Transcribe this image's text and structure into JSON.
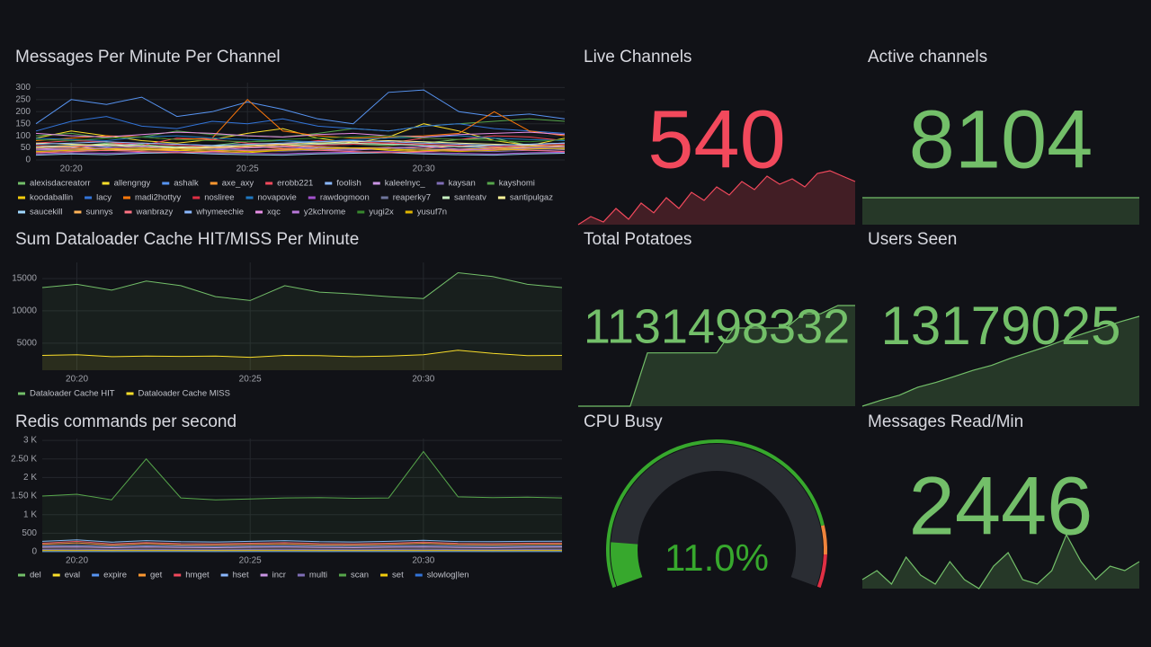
{
  "chart_data": [
    {
      "type": "line",
      "title": "Messages Per Minute Per Channel",
      "categories": [
        null,
        "20:20",
        null,
        null,
        null,
        null,
        "20:25",
        null,
        null,
        null,
        null,
        "20:30",
        null,
        null,
        null,
        null
      ],
      "ylim": [
        0,
        320
      ],
      "yticks": [
        0,
        50,
        100,
        150,
        200,
        250,
        300
      ],
      "grid": true,
      "series": [
        {
          "name": "alexisdacreatorr",
          "color": "#73bf69",
          "values": [
            60,
            55,
            70,
            65,
            50,
            60,
            75,
            80,
            70,
            65,
            60,
            70,
            85,
            90,
            60,
            70
          ]
        },
        {
          "name": "allengngy",
          "color": "#fade2a",
          "values": [
            90,
            120,
            100,
            80,
            70,
            85,
            110,
            130,
            90,
            70,
            95,
            150,
            120,
            80,
            60,
            90
          ]
        },
        {
          "name": "ashalk",
          "color": "#5794f2",
          "values": [
            150,
            250,
            230,
            260,
            180,
            200,
            240,
            210,
            170,
            150,
            280,
            290,
            200,
            180,
            190,
            170
          ]
        },
        {
          "name": "axe_axy",
          "color": "#ff9830",
          "values": [
            40,
            45,
            50,
            42,
            38,
            50,
            55,
            48,
            45,
            50,
            52,
            47,
            60,
            55,
            50,
            48
          ]
        },
        {
          "name": "erobb221",
          "color": "#f2495c",
          "values": [
            70,
            80,
            75,
            60,
            90,
            85,
            70,
            65,
            80,
            75,
            70,
            90,
            85,
            100,
            95,
            80
          ]
        },
        {
          "name": "foolish",
          "color": "#8ab8ff",
          "values": [
            50,
            60,
            55,
            70,
            65,
            60,
            50,
            55,
            60,
            65,
            70,
            60,
            55,
            50,
            60,
            65
          ]
        },
        {
          "name": "kaleelnyc_",
          "color": "#ca95e5",
          "values": [
            45,
            50,
            60,
            55,
            50,
            45,
            55,
            60,
            50,
            45,
            50,
            55,
            60,
            55,
            50,
            45
          ]
        },
        {
          "name": "kaysan",
          "color": "#806eb7",
          "values": [
            35,
            40,
            38,
            42,
            45,
            40,
            38,
            36,
            40,
            42,
            45,
            40,
            38,
            35,
            40,
            42
          ]
        },
        {
          "name": "kayshomi",
          "color": "#56a64b",
          "values": [
            100,
            110,
            90,
            95,
            120,
            105,
            100,
            95,
            110,
            130,
            120,
            140,
            150,
            160,
            170,
            160
          ]
        },
        {
          "name": "koodaballin",
          "color": "#f2cc0c",
          "values": [
            30,
            35,
            40,
            45,
            40,
            35,
            30,
            40,
            45,
            50,
            40,
            35,
            40,
            45,
            50,
            45
          ]
        },
        {
          "name": "lacy",
          "color": "#3274d9",
          "values": [
            120,
            160,
            180,
            140,
            130,
            160,
            150,
            170,
            140,
            130,
            120,
            140,
            150,
            130,
            120,
            110
          ]
        },
        {
          "name": "madi2hottyy",
          "color": "#ff780a",
          "values": [
            80,
            90,
            100,
            95,
            85,
            90,
            250,
            120,
            100,
            90,
            95,
            100,
            110,
            200,
            120,
            100
          ]
        },
        {
          "name": "nosliree",
          "color": "#e02f44",
          "values": [
            60,
            55,
            65,
            70,
            60,
            55,
            50,
            55,
            60,
            65,
            70,
            65,
            60,
            55,
            60,
            65
          ]
        },
        {
          "name": "novapovie",
          "color": "#1f78c1",
          "values": [
            90,
            85,
            80,
            95,
            100,
            90,
            85,
            80,
            75,
            85,
            90,
            95,
            100,
            90,
            85,
            80
          ]
        },
        {
          "name": "rawdogmoon",
          "color": "#a352cc",
          "values": [
            25,
            30,
            28,
            32,
            35,
            30,
            28,
            26,
            30,
            32,
            35,
            30,
            28,
            25,
            30,
            32
          ]
        },
        {
          "name": "reaperky7",
          "color": "#6e759c",
          "values": [
            40,
            42,
            45,
            48,
            50,
            45,
            42,
            40,
            45,
            48,
            50,
            45,
            42,
            40,
            45,
            48
          ]
        },
        {
          "name": "santeatv",
          "color": "#c8f2c2",
          "values": [
            55,
            60,
            65,
            60,
            55,
            50,
            55,
            60,
            65,
            70,
            65,
            60,
            55,
            60,
            65,
            70
          ]
        },
        {
          "name": "santipulgaz",
          "color": "#fff899",
          "values": [
            70,
            65,
            60,
            55,
            50,
            55,
            60,
            65,
            70,
            75,
            80,
            75,
            70,
            65,
            60,
            55
          ]
        },
        {
          "name": "saucekill",
          "color": "#a0d8ff",
          "values": [
            20,
            25,
            22,
            28,
            30,
            25,
            22,
            20,
            25,
            28,
            30,
            25,
            22,
            20,
            25,
            28
          ]
        },
        {
          "name": "sunnys",
          "color": "#ffb357",
          "values": [
            50,
            55,
            45,
            40,
            45,
            50,
            55,
            60,
            55,
            50,
            45,
            40,
            45,
            50,
            55,
            60
          ]
        },
        {
          "name": "wanbrazy",
          "color": "#ff7383",
          "values": [
            30,
            35,
            40,
            35,
            30,
            35,
            40,
            45,
            40,
            35,
            30,
            35,
            40,
            45,
            40,
            35
          ]
        },
        {
          "name": "whymeechie",
          "color": "#8ab8ff",
          "values": [
            65,
            70,
            75,
            70,
            65,
            60,
            65,
            70,
            75,
            80,
            75,
            70,
            65,
            60,
            65,
            70
          ]
        },
        {
          "name": "xqc",
          "color": "#e88fe6",
          "values": [
            110,
            100,
            95,
            105,
            115,
            110,
            100,
            95,
            105,
            110,
            100,
            95,
            105,
            110,
            115,
            105
          ]
        },
        {
          "name": "y2kchrome",
          "color": "#b877d9",
          "values": [
            45,
            40,
            50,
            55,
            45,
            40,
            50,
            55,
            45,
            40,
            50,
            55,
            45,
            40,
            50,
            55
          ]
        },
        {
          "name": "yugi2x",
          "color": "#37872d",
          "values": [
            85,
            80,
            90,
            95,
            85,
            80,
            75,
            85,
            90,
            95,
            100,
            90,
            85,
            80,
            75,
            85
          ]
        },
        {
          "name": "yusuf7n",
          "color": "#e0b400",
          "values": [
            35,
            40,
            45,
            50,
            45,
            40,
            35,
            40,
            45,
            50,
            45,
            40,
            35,
            40,
            45,
            50
          ]
        }
      ]
    },
    {
      "type": "stat",
      "title": "Live Channels",
      "value": 540,
      "color": "#f2495c",
      "sparkline": [
        440,
        455,
        445,
        470,
        450,
        480,
        462,
        490,
        470,
        500,
        485,
        510,
        495,
        520,
        505,
        530,
        515,
        525,
        510,
        535,
        540,
        530,
        520
      ]
    },
    {
      "type": "stat",
      "title": "Active channels",
      "value": 8104,
      "color": "#73bf69",
      "sparkline": [
        8104,
        8104,
        8104,
        8104,
        8104,
        8104,
        8104,
        8104,
        8104,
        8104
      ]
    },
    {
      "type": "line",
      "title": "Sum Dataloader Cache HIT/MISS Per Minute",
      "categories": [
        null,
        "20:20",
        null,
        null,
        null,
        null,
        "20:25",
        null,
        null,
        null,
        null,
        "20:30",
        null,
        null,
        null,
        null
      ],
      "ylim": [
        800,
        17500
      ],
      "yticks": [
        5000,
        10000,
        15000
      ],
      "grid": true,
      "fill": true,
      "series": [
        {
          "name": "Dataloader Cache HIT",
          "color": "#73bf69",
          "values": [
            13600,
            14100,
            13200,
            14600,
            13900,
            12200,
            11600,
            13900,
            12900,
            12600,
            12200,
            11900,
            15900,
            15300,
            14100,
            13600
          ]
        },
        {
          "name": "Dataloader Cache MISS",
          "color": "#fade2a",
          "values": [
            3100,
            3200,
            2900,
            3000,
            2950,
            3000,
            2800,
            3100,
            3050,
            2900,
            3000,
            3200,
            3900,
            3400,
            3050,
            3100
          ]
        }
      ]
    },
    {
      "type": "stat",
      "title": "Total Potatoes",
      "value": 1131498332,
      "color": "#73bf69",
      "sparkline": [
        1131470000,
        1131470000,
        1131470000,
        1131470000,
        1131485000,
        1131485000,
        1131485000,
        1131485000,
        1131485000,
        1131492000,
        1131492000,
        1131492000,
        1131492000,
        1131496000,
        1131496000,
        1131498332,
        1131498332
      ]
    },
    {
      "type": "stat",
      "title": "Users Seen",
      "value": 13179025,
      "color": "#73bf69",
      "sparkline": [
        13170000,
        13170600,
        13171100,
        13171900,
        13172400,
        13173000,
        13173600,
        13174100,
        13174800,
        13175400,
        13176000,
        13176700,
        13177300,
        13177900,
        13178500,
        13179025
      ]
    },
    {
      "type": "line",
      "title": "Redis commands per second",
      "categories": [
        null,
        "20:20",
        null,
        null,
        null,
        null,
        "20:25",
        null,
        null,
        null,
        null,
        "20:30",
        null,
        null,
        null,
        null
      ],
      "ylim": [
        0,
        3050
      ],
      "yticks": [
        0,
        500,
        {
          "value": 1000,
          "label": "1 K"
        },
        {
          "value": 1500,
          "label": "1.50 K"
        },
        {
          "value": 2000,
          "label": "2 K"
        },
        {
          "value": 2500,
          "label": "2.50 K"
        },
        {
          "value": 3000,
          "label": "3 K"
        }
      ],
      "grid": true,
      "fill": true,
      "series": [
        {
          "name": "del",
          "color": "#73bf69",
          "values": [
            20,
            22,
            21,
            20,
            22,
            21,
            20,
            22,
            21,
            20,
            22,
            21,
            20,
            22,
            21,
            20
          ]
        },
        {
          "name": "eval",
          "color": "#fade2a",
          "values": [
            8,
            9,
            8,
            10,
            9,
            8,
            9,
            10,
            8,
            9,
            8,
            10,
            9,
            8,
            9,
            10
          ]
        },
        {
          "name": "expire",
          "color": "#5794f2",
          "values": [
            150,
            170,
            140,
            160,
            150,
            140,
            150,
            160,
            150,
            145,
            155,
            170,
            150,
            145,
            150,
            155
          ]
        },
        {
          "name": "get",
          "color": "#ff9830",
          "values": [
            200,
            240,
            180,
            220,
            190,
            185,
            200,
            210,
            190,
            185,
            200,
            230,
            195,
            190,
            200,
            205
          ]
        },
        {
          "name": "hmget",
          "color": "#f2495c",
          "values": [
            230,
            280,
            210,
            250,
            220,
            215,
            230,
            250,
            220,
            215,
            230,
            260,
            225,
            220,
            230,
            235
          ]
        },
        {
          "name": "hset",
          "color": "#8ab8ff",
          "values": [
            280,
            320,
            260,
            300,
            270,
            265,
            280,
            300,
            270,
            265,
            280,
            310,
            275,
            270,
            280,
            285
          ]
        },
        {
          "name": "incr",
          "color": "#ca95e5",
          "values": [
            120,
            130,
            110,
            125,
            115,
            110,
            120,
            125,
            115,
            110,
            120,
            130,
            115,
            110,
            120,
            125
          ]
        },
        {
          "name": "multi",
          "color": "#806eb7",
          "values": [
            60,
            65,
            55,
            62,
            58,
            55,
            60,
            62,
            58,
            55,
            60,
            65,
            58,
            55,
            60,
            62
          ]
        },
        {
          "name": "scan",
          "color": "#56a64b",
          "values": [
            1500,
            1550,
            1400,
            2500,
            1450,
            1400,
            1420,
            1450,
            1460,
            1440,
            1450,
            2700,
            1480,
            1460,
            1470,
            1450
          ]
        },
        {
          "name": "set",
          "color": "#f2cc0c",
          "values": [
            30,
            32,
            28,
            31,
            29,
            28,
            30,
            31,
            29,
            28,
            30,
            32,
            29,
            28,
            30,
            31
          ]
        },
        {
          "name": "slowlog|len",
          "color": "#3274d9",
          "values": [
            2,
            2,
            2,
            2,
            2,
            2,
            2,
            2,
            2,
            2,
            2,
            2,
            2,
            2,
            2,
            2
          ]
        }
      ]
    },
    {
      "type": "gauge",
      "title": "CPU Busy",
      "value": 11.0,
      "value_label": "11.0%",
      "color": "#37a82d",
      "ylim": [
        0,
        100
      ],
      "thresholds": [
        {
          "value": 85,
          "color": "#ef843c"
        },
        {
          "value": 92,
          "color": "#e02f44"
        }
      ]
    },
    {
      "type": "stat",
      "title": "Messages Read/Min",
      "value": 2446,
      "color": "#73bf69",
      "sparkline": [
        2100,
        2200,
        2050,
        2350,
        2150,
        2050,
        2300,
        2100,
        2000,
        2250,
        2400,
        2100,
        2050,
        2200,
        2600,
        2300,
        2100,
        2250,
        2200,
        2300
      ]
    }
  ]
}
